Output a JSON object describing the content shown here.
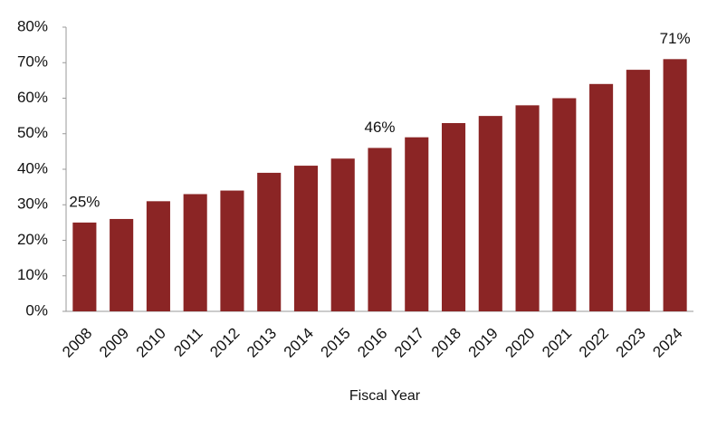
{
  "chart_data": {
    "type": "bar",
    "x_axis_label": "Fiscal Year",
    "categories": [
      "2008",
      "2009",
      "2010",
      "2011",
      "2012",
      "2013",
      "2014",
      "2015",
      "2016",
      "2017",
      "2018",
      "2019",
      "2020",
      "2021",
      "2022",
      "2023",
      "2024"
    ],
    "values": [
      25,
      26,
      31,
      33,
      34,
      39,
      41,
      43,
      46,
      49,
      53,
      55,
      58,
      60,
      64,
      68,
      71
    ],
    "value_labels": [
      "25%",
      null,
      null,
      null,
      null,
      null,
      null,
      null,
      "46%",
      null,
      null,
      null,
      null,
      null,
      null,
      null,
      "71%"
    ],
    "color": "#8b2525",
    "ylim": [
      0,
      80
    ],
    "yticks": [
      {
        "value": 0,
        "label": "0%"
      },
      {
        "value": 10,
        "label": "10%"
      },
      {
        "value": 20,
        "label": "20%"
      },
      {
        "value": 30,
        "label": "30%"
      },
      {
        "value": 40,
        "label": "40%"
      },
      {
        "value": 50,
        "label": "50%"
      },
      {
        "value": 60,
        "label": "60%"
      },
      {
        "value": 70,
        "label": "70%"
      },
      {
        "value": 80,
        "label": "80%"
      }
    ],
    "grid": false
  }
}
